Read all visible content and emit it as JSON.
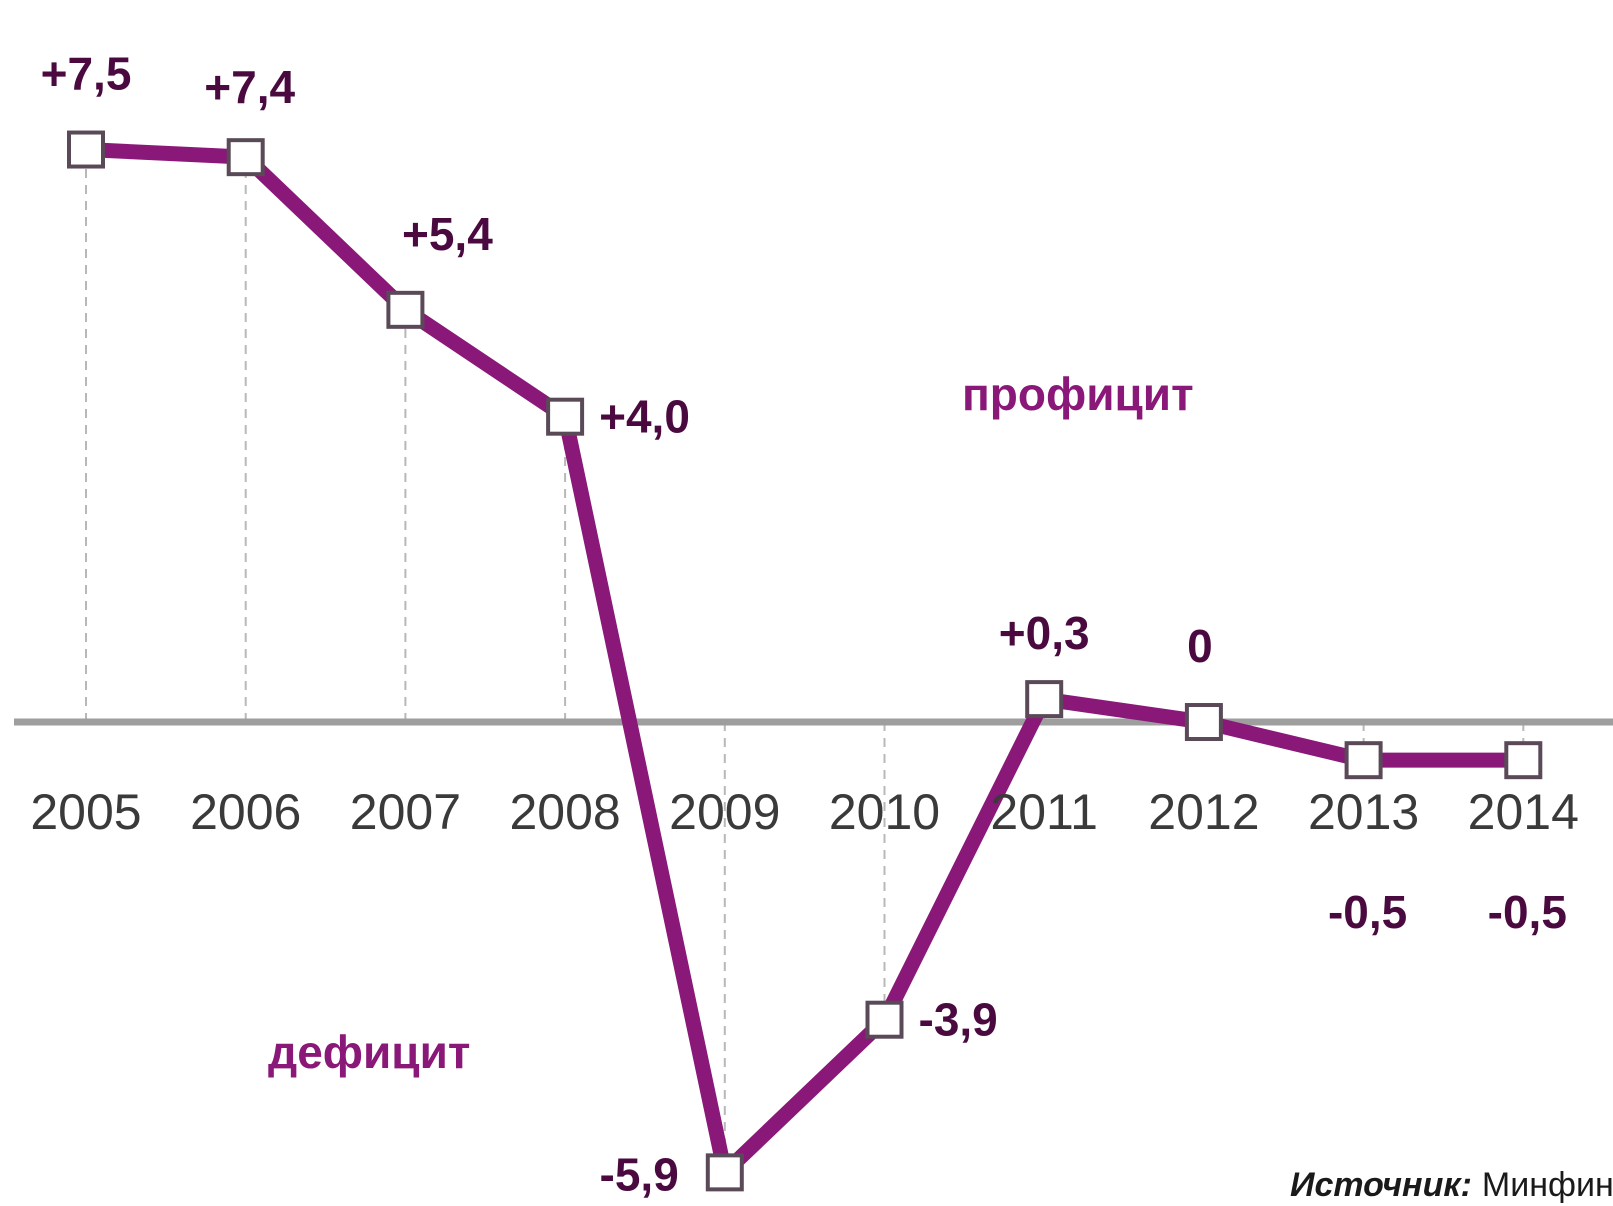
{
  "chart_data": {
    "type": "line",
    "categories": [
      "2005",
      "2006",
      "2007",
      "2008",
      "2009",
      "2010",
      "2011",
      "2012",
      "2013",
      "2014"
    ],
    "values": [
      7.5,
      7.4,
      5.4,
      4.0,
      -5.9,
      -3.9,
      0.3,
      0,
      -0.5,
      -0.5
    ],
    "data_labels": [
      "+7,5",
      "+7,4",
      "+5,4",
      "+4,0",
      "-5,9",
      "-3,9",
      "+0,3",
      "0",
      "-0,5",
      "-0,5"
    ],
    "ylim": [
      -6.0,
      7.9
    ],
    "zero_line": true,
    "grid": false,
    "annotations": {
      "surplus": "профицит",
      "deficit": "дефицит"
    },
    "source_label": "Источник:",
    "source_value": "Минфин РФ",
    "colors": {
      "line": "#8a1878",
      "zero_line": "#9e9e9e",
      "marker_fill": "#ffffff",
      "marker_stroke": "#5a4a58",
      "label": "#4a0a40"
    }
  }
}
